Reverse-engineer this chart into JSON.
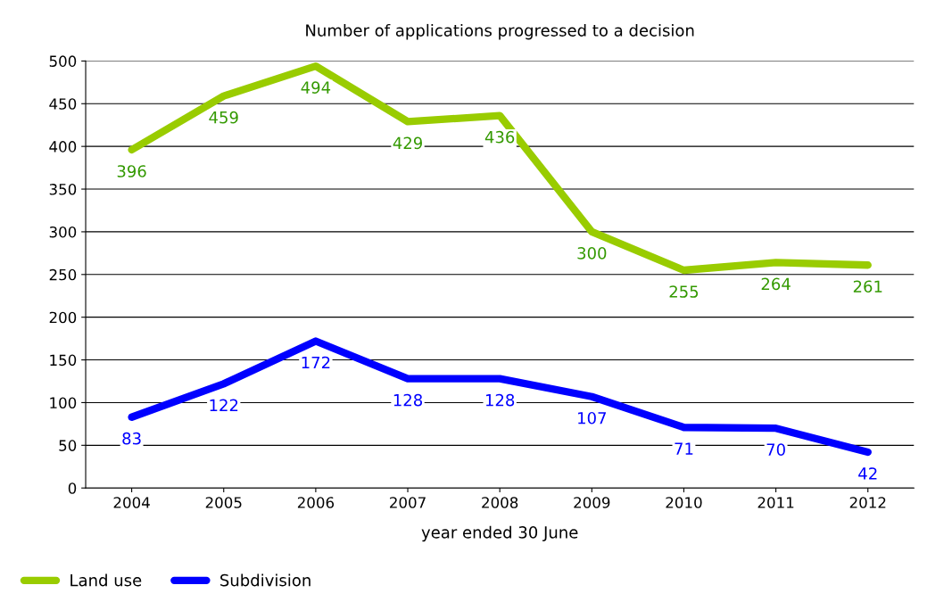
{
  "chart_data": {
    "type": "line",
    "title": "Number of applications progressed to a decision",
    "xlabel": "year ended 30 June",
    "categories": [
      "2004",
      "2005",
      "2006",
      "2007",
      "2008",
      "2009",
      "2010",
      "2011",
      "2012"
    ],
    "series": [
      {
        "name": "Land use",
        "color": "#99cc00",
        "values": [
          396,
          459,
          494,
          429,
          436,
          300,
          255,
          264,
          261
        ]
      },
      {
        "name": "Subdivision",
        "color": "#0000ff",
        "values": [
          83,
          122,
          172,
          128,
          128,
          107,
          71,
          70,
          42
        ]
      }
    ],
    "ylim": [
      0,
      500
    ],
    "yticks": [
      0,
      50,
      100,
      150,
      200,
      250,
      300,
      350,
      400,
      450,
      500
    ],
    "grid": "y",
    "legend": "bottom left",
    "data_labels": true,
    "marker": "none",
    "line_style": "solid"
  }
}
